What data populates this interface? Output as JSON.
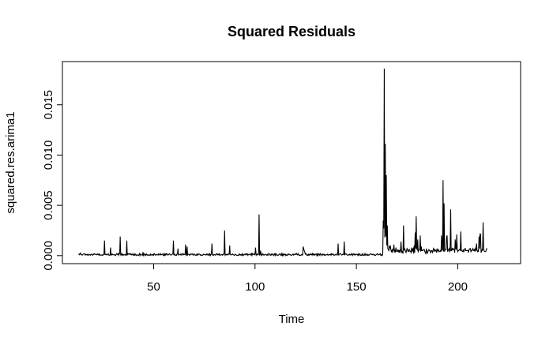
{
  "chart_data": {
    "type": "line",
    "title": "Squared Residuals",
    "xlabel": "Time",
    "ylabel": "squared.res.arima1",
    "xlim": [
      5,
      231
    ],
    "ylim": [
      -0.0008,
      0.0193
    ],
    "x_ticks": [
      50,
      100,
      150,
      200
    ],
    "y_ticks": [
      0.0,
      0.005,
      0.01,
      0.015
    ],
    "x_tick_labels": [
      "50",
      "100",
      "150",
      "200"
    ],
    "y_tick_labels": [
      "0.000",
      "0.005",
      "0.010",
      "0.015"
    ],
    "grid": false,
    "legend": "none",
    "series": [
      {
        "x_start": 13.0,
        "x_step": 0.25,
        "values": [
          0.00019,
          0.00012,
          8e-05,
          0.00024,
          0.00014,
          0.00015,
          0.0001,
          4e-05,
          9e-05,
          0.00014,
          0.00017,
          0.00019,
          0.00016,
          5e-05,
          0.00013,
          9e-05,
          0.0001,
          6e-05,
          0.00014,
          4e-05,
          6e-05,
          0.0001,
          8e-05,
          4e-05,
          0.00012,
          0.00014,
          8e-05,
          8e-05,
          4e-05,
          0.00016,
          0.00012,
          0.00019,
          0.00016,
          0.00012,
          0.00013,
          9e-05,
          8e-05,
          0.00017,
          0.00012,
          0.00014,
          4e-05,
          0.00016,
          0.00011,
          2e-05,
          5e-05,
          5e-05,
          7e-05,
          2e-05,
          8e-05,
          7e-05,
          0.00014,
          0.0015,
          0.00011,
          0.00013,
          7e-05,
          0.00013,
          0.00016,
          0.00014,
          7e-05,
          0.00015,
          4e-05,
          3e-05,
          6e-05,
          0.0008,
          8e-05,
          0.00015,
          7e-05,
          0.00014,
          0.0001,
          7e-05,
          0.0001,
          5e-05,
          7e-05,
          1e-05,
          0.00013,
          0.00019,
          0.00012,
          0.00012,
          0.00022,
          3e-05,
          0.00017,
          0.00018,
          0.0019,
          0.0001,
          0.00017,
          3e-05,
          0.00018,
          9e-05,
          3e-05,
          0.0001,
          8e-05,
          9e-05,
          5e-05,
          0.00011,
          1e-05,
          0.0015,
          4e-05,
          0.00018,
          0.00019,
          0.00012,
          0.0002,
          0.00016,
          0.0001,
          0.00019,
          0.00014,
          6e-05,
          0.00011,
          0.00018,
          4e-05,
          3e-05,
          0.00015,
          4e-05,
          0.00014,
          8e-05,
          1e-05,
          8e-05,
          8e-05,
          4e-05,
          1e-05,
          8e-05,
          0.00019,
          1e-05,
          0.00015,
          0.00013,
          7e-05,
          8e-05,
          4e-05,
          0.00035,
          4e-05,
          0.00018,
          0.00018,
          1e-05,
          0.00011,
          4e-05,
          0.00016,
          0.0001,
          4e-05,
          1e-05,
          7e-05,
          0.0001,
          3e-05,
          1e-05,
          0.00015,
          8e-05,
          0.0001,
          2e-05,
          9e-05,
          0.00013,
          4e-05,
          0.0002,
          0.00016,
          7e-05,
          3e-05,
          9e-05,
          0.00013,
          9e-05,
          8e-05,
          5e-05,
          0.00019,
          0.00015,
          6e-05,
          7e-05,
          0.00018,
          8e-05,
          0.0001,
          0.00013,
          0.00017,
          1e-05,
          3e-05,
          0.00018,
          2e-05,
          0.00016,
          6e-05,
          0.00019,
          0.00013,
          0.00016,
          5e-05,
          7e-05,
          0.00012,
          0.00019,
          0.00014,
          8e-05,
          5e-05,
          6e-05,
          0.00013,
          0.00016,
          0.00016,
          0.0015,
          3e-05,
          0.00013,
          7e-05,
          2e-05,
          7e-05,
          3e-05,
          0.00016,
          0.00016,
          0.0007,
          6e-05,
          8e-05,
          9e-05,
          0.00012,
          0.00015,
          4e-05,
          0.00013,
          0.0002,
          0.00016,
          6e-05,
          0.00016,
          0.00011,
          0.00011,
          0.00013,
          0.0011,
          2e-05,
          8e-05,
          0.0009,
          6e-05,
          0.00013,
          0.00015,
          0.00012,
          2e-05,
          0.0001,
          0.00017,
          0.00013,
          0.00013,
          0.00018,
          0.00012,
          4e-05,
          0.00015,
          0.00015,
          0.00012,
          3e-05,
          6e-05,
          2e-05,
          0.00013,
          0.00017,
          3e-05,
          0.0001,
          0.00017,
          0.00014,
          0.00014,
          5e-05,
          9e-05,
          2e-05,
          3e-05,
          5e-05,
          4e-05,
          0.00014,
          0.00012,
          0.00012,
          7e-05,
          0.00011,
          7e-05,
          6e-05,
          0.00018,
          0.00014,
          4e-05,
          5e-05,
          0.00017,
          5e-05,
          0.00017,
          1e-05,
          0.00012,
          0.00015,
          0.0012,
          6e-05,
          8e-05,
          2e-05,
          0.0001,
          0.00012,
          7e-05,
          4e-05,
          9e-05,
          0.00019,
          0.00015,
          8e-05,
          0.00016,
          0.00011,
          4e-05,
          0.00018,
          0.00012,
          4e-05,
          7e-05,
          0.0001,
          0.00011,
          3e-05,
          0.0001,
          0.00017,
          0.00016,
          0.0025,
          4e-05,
          0.00011,
          7e-05,
          0.00014,
          0.0001,
          6e-05,
          0.00016,
          0.00012,
          0.00012,
          0.001,
          0.00018,
          7e-05,
          7e-05,
          9e-05,
          0.00011,
          0.00016,
          9e-05,
          7e-05,
          1e-05,
          6e-05,
          0.00014,
          9e-05,
          7e-05,
          2e-05,
          3e-05,
          3e-05,
          5e-05,
          2e-05,
          0.00017,
          0.00011,
          5e-05,
          0.0001,
          5e-05,
          0.00013,
          1e-05,
          0.00017,
          4e-05,
          5e-05,
          0.00012,
          0.00014,
          8e-05,
          0.00019,
          0.00014,
          0.00017,
          4e-05,
          0.00015,
          7e-05,
          8e-05,
          0.00014,
          0.00016,
          0.00012,
          5e-05,
          0.0002,
          2e-05,
          0.0002,
          0.00017,
          0.00011,
          0.0001,
          0.00018,
          9e-05,
          0.0008,
          0.00018,
          4e-05,
          0.00016,
          0.00014,
          7e-05,
          0.00013,
          0.0041,
          1e-05,
          0.00015,
          0.0005,
          4e-05,
          0.00013,
          5e-05,
          0.00019,
          0.00014,
          5e-05,
          4e-05,
          0.00011,
          0.00013,
          0.0001,
          7e-05,
          4e-05,
          0.00013,
          3e-05,
          4e-05,
          0.0002,
          0.00017,
          0.00014,
          3e-05,
          6e-05,
          0.00015,
          5e-05,
          8e-05,
          0.00018,
          0.00013,
          1e-05,
          8e-05,
          0.00018,
          2e-05,
          0.00019,
          0.00016,
          4e-05,
          7e-05,
          2e-05,
          3e-05,
          8e-05,
          0.00016,
          0.00015,
          0.00018,
          1e-05,
          3e-05,
          0.0002,
          2e-05,
          0.00016,
          1e-05,
          0.00014,
          0.00011,
          0.00014,
          2e-05,
          0.00012,
          3e-05,
          5e-05,
          2e-05,
          0.00016,
          0.00011,
          0.00015,
          0.00013,
          7e-05,
          9e-05,
          4e-05,
          3e-05,
          5e-05,
          0.00011,
          0.00016,
          5e-05,
          8e-05,
          0.00014,
          0.00013,
          0.00018,
          0.00011,
          0.0002,
          0.00012,
          7e-05,
          0.00019,
          0.0001,
          1e-05,
          3e-05,
          6e-05,
          2e-05,
          4e-05,
          0.00011,
          0.00013,
          2e-05,
          0.0009,
          0.0007,
          0.0005,
          0.0004,
          0.00018,
          0.00012,
          0.00019,
          5e-05,
          2e-05,
          8e-05,
          2e-05,
          0.00014,
          4e-05,
          9e-05,
          0.00017,
          9e-05,
          0.00014,
          8e-05,
          0.0002,
          5e-05,
          0.00017,
          9e-05,
          0.00015,
          4e-05,
          0.00011,
          0.00015,
          0.00016,
          1e-05,
          0.00015,
          1e-05,
          0.00019,
          0.00011,
          4e-05,
          0.00017,
          0.0002,
          1e-05,
          0.0001,
          0.00013,
          0.00015,
          4e-05,
          0.00013,
          0.00014,
          3e-05,
          8e-05,
          3e-05,
          8e-05,
          0.0001,
          9e-05,
          0.00014,
          3e-05,
          8e-05,
          8e-05,
          0.0001,
          9e-05,
          0.00014,
          3e-05,
          0.00018,
          0.0001,
          0.00012,
          0.00017,
          0.0001,
          1e-05,
          6e-05,
          6e-05,
          0.00013,
          0.00015,
          0.00014,
          4e-05,
          0.00015,
          0.0012,
          2e-05,
          0.00014,
          0.00015,
          0.00019,
          0.00018,
          0.0001,
          5e-05,
          7e-05,
          0.00014,
          0.00013,
          0.0001,
          0.0014,
          5e-05,
          0.0002,
          0.00015,
          0.00016,
          9e-05,
          5e-05,
          3e-05,
          7e-05,
          0.00011,
          7e-05,
          0.00014,
          7e-05,
          5e-05,
          0.00018,
          9e-05,
          0.00014,
          3e-05,
          0.00017,
          0.00017,
          8e-05,
          0.00015,
          6e-05,
          0.00011,
          0.00012,
          0.00015,
          0.00011,
          1e-05,
          0.00016,
          4e-05,
          0.00015,
          0.00018,
          3e-05,
          4e-05,
          2e-05,
          0.00013,
          4e-05,
          0.00018,
          6e-05,
          1e-05,
          4e-05,
          0.00019,
          4e-05,
          5e-05,
          0.00014,
          5e-05,
          1e-05,
          0.00012,
          4e-05,
          4e-05,
          0.00011,
          0.00015,
          0.00019,
          0.00017,
          0.00011,
          0.00012,
          8e-05,
          0.00014,
          0.0001,
          4e-05,
          8e-05,
          4e-05,
          3e-05,
          0.0001,
          0.00011,
          0.00019,
          0.00017,
          7e-05,
          8e-05,
          0.0001,
          0.00013,
          0.00019,
          4e-05,
          1e-05,
          0.0001,
          2e-05,
          0.00017,
          0.0035,
          0.0027,
          0.0186,
          0.0018,
          0.0111,
          0.0019,
          0.008,
          0.001,
          0.003,
          0.0007,
          0.0006,
          0.0005,
          0.0009,
          0.0008,
          0.001,
          0.0006,
          0.0004,
          0.0005,
          0.0003,
          0.0007,
          0.0005,
          0.0011,
          0.0004,
          0.0005,
          0.0003,
          0.0008,
          0.0005,
          0.0004,
          0.0004,
          0.0006,
          0.0004,
          0.0005,
          0.0003,
          0.0005,
          0.0004,
          0.0014,
          0.0005,
          0.0003,
          0.0004,
          0.0002,
          0.003,
          0.0005,
          0.0007,
          0.0006,
          0.0004,
          0.0003,
          0.0005,
          0.0007,
          0.0006,
          0.0004,
          0.0004,
          0.0006,
          0.0006,
          0.0004,
          0.0004,
          0.0003,
          0.0008,
          0.0004,
          0.0006,
          0.0007,
          0.0002,
          0.001,
          0.0003,
          0.0023,
          0.0007,
          0.0039,
          0.0007,
          0.0006,
          0.0016,
          0.0004,
          0.0005,
          0.0006,
          0.0006,
          0.002,
          0.0004,
          0.0009,
          0.0005,
          0.0005,
          0.0005,
          0.0006,
          0.0006,
          0.0006,
          0.0004,
          0.0003,
          0.0002,
          0.0007,
          0.0004,
          0.0002,
          0.0004,
          0.0005,
          0.0006,
          0.0005,
          0.0005,
          0.0003,
          0.0004,
          0.0005,
          0.0005,
          0.0003,
          0.0004,
          0.0007,
          0.0006,
          0.0004,
          0.0006,
          0.0005,
          0.0005,
          0.0003,
          0.0007,
          0.0005,
          0.0004,
          0.0006,
          0.0005,
          0.0004,
          0.0004,
          0.0005,
          0.0004,
          0.002,
          0.0005,
          0.0006,
          0.0075,
          0.0004,
          0.0052,
          0.0004,
          0.0006,
          0.0006,
          0.0006,
          0.0019,
          0.002,
          0.0004,
          0.0005,
          0.0006,
          0.0007,
          0.0004,
          0.0005,
          0.0046,
          0.0005,
          0.0005,
          0.0007,
          0.0006,
          0.0007,
          0.0006,
          0.0006,
          0.0003,
          0.0016,
          0.0007,
          0.0006,
          0.0021,
          0.0006,
          0.0004,
          0.0005,
          0.0005,
          0.0006,
          0.0006,
          0.0005,
          0.0024,
          0.0005,
          0.0005,
          0.0004,
          0.0004,
          0.0006,
          0.0004,
          0.0005,
          0.0007,
          0.0007,
          0.0005,
          0.0005,
          0.0005,
          0.0005,
          0.0005,
          0.0003,
          0.0006,
          0.0006,
          0.0007,
          0.0007,
          0.0004,
          0.0005,
          0.0005,
          0.0006,
          0.0007,
          0.0005,
          0.0005,
          0.0006,
          0.0004,
          0.0007,
          0.0006,
          0.0012,
          0.0005,
          0.0004,
          0.0005,
          0.0004,
          0.0019,
          0.0007,
          0.0022,
          0.0021,
          0.0003,
          0.0004,
          0.0006,
          0.0005,
          0.0033,
          0.0006,
          0.0005,
          0.0004,
          0.0004,
          0.0004,
          0.0005,
          0.0007,
          0.0007
        ]
      }
    ]
  }
}
